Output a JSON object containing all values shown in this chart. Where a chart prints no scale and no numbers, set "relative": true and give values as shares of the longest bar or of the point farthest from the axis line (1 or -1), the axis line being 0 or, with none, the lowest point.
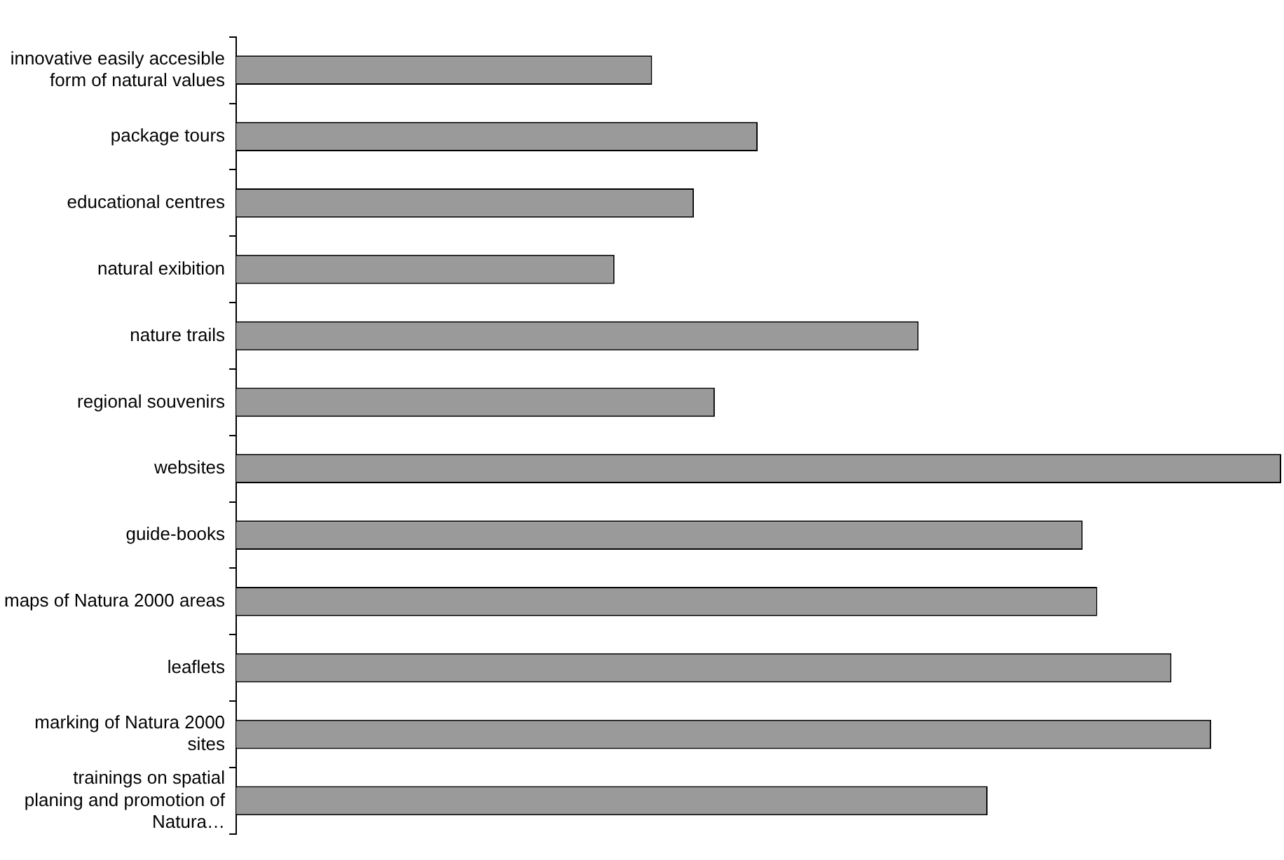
{
  "chart_data": {
    "type": "bar",
    "orientation": "horizontal",
    "relative": true,
    "categories": [
      "innovative easily accesible form of natural values",
      "package tours",
      "educational centres",
      "natural exibition",
      "nature trails",
      "regional souvenirs",
      "websites",
      "guide-books",
      "maps of Natura 2000 areas",
      "leaflets",
      "marking of Natura 2000 sites",
      "trainings on spatial planing and promotion of Natura…"
    ],
    "values": [
      0.398,
      0.499,
      0.438,
      0.362,
      0.653,
      0.458,
      1,
      0.81,
      0.824,
      0.895,
      0.933,
      0.719
    ],
    "color": "#9a9a9a",
    "legend": false
  }
}
